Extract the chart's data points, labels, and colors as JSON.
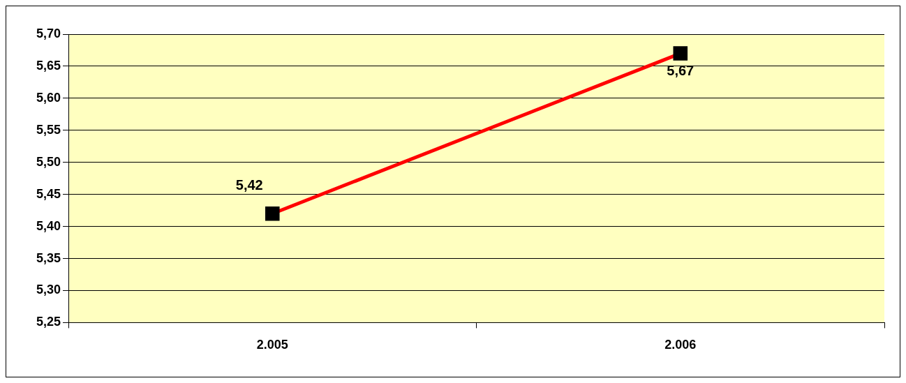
{
  "chart_data": {
    "type": "line",
    "categories": [
      "2.005",
      "2.006"
    ],
    "series": [
      {
        "color": "#ff0000",
        "values": [
          5.42,
          5.67
        ],
        "value_labels": [
          "5,42",
          "5,67"
        ]
      }
    ],
    "ylim": [
      5.25,
      5.7
    ],
    "yticks": [
      {
        "value": 5.25,
        "label": "5,25"
      },
      {
        "value": 5.3,
        "label": "5,30"
      },
      {
        "value": 5.35,
        "label": "5,35"
      },
      {
        "value": 5.4,
        "label": "5,40"
      },
      {
        "value": 5.45,
        "label": "5,45"
      },
      {
        "value": 5.5,
        "label": "5,50"
      },
      {
        "value": 5.55,
        "label": "5,55"
      },
      {
        "value": 5.6,
        "label": "5,60"
      },
      {
        "value": 5.65,
        "label": "5,65"
      },
      {
        "value": 5.7,
        "label": "5,70"
      }
    ],
    "grid": "y",
    "marker": "square",
    "line_style": "solid",
    "legend": false
  }
}
